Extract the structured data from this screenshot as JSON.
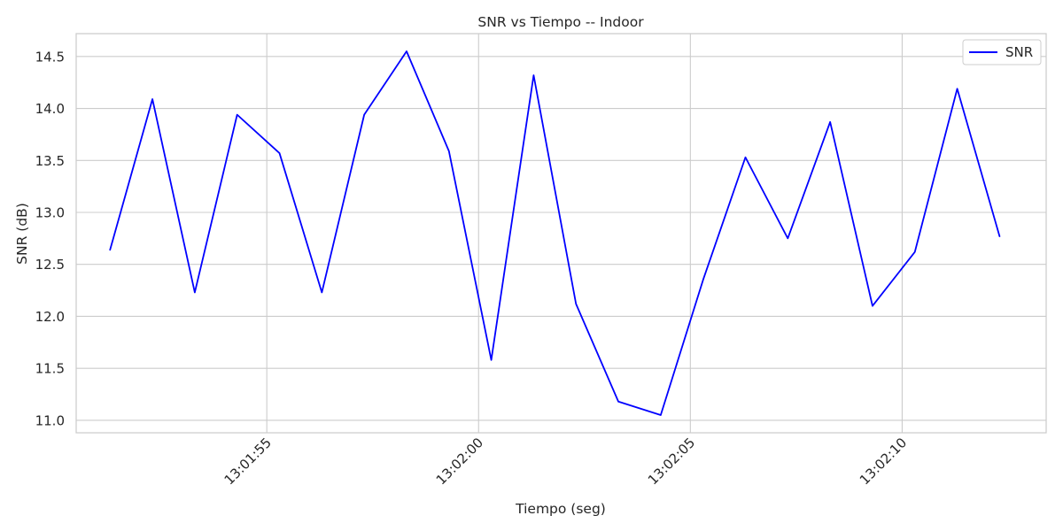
{
  "chart_data": {
    "type": "line",
    "title": "SNR vs Tiempo -- Indoor",
    "xlabel": "Tiempo (seg)",
    "ylabel": "SNR (dB)",
    "x": [
      "13:01:51.3",
      "13:01:52.3",
      "13:01:53.3",
      "13:01:54.3",
      "13:01:55.3",
      "13:01:56.3",
      "13:01:57.3",
      "13:01:58.3",
      "13:01:59.3",
      "13:02:00.3",
      "13:02:01.3",
      "13:02:02.3",
      "13:02:03.3",
      "13:02:04.3",
      "13:02:05.3",
      "13:02:06.3",
      "13:02:07.3",
      "13:02:08.3",
      "13:02:09.3",
      "13:02:10.3",
      "13:02:11.3",
      "13:02:12.3"
    ],
    "series": [
      {
        "name": "SNR",
        "color": "#0000ff",
        "values": [
          12.64,
          14.09,
          12.23,
          13.94,
          13.57,
          12.23,
          13.94,
          14.55,
          13.59,
          11.58,
          14.32,
          12.12,
          11.18,
          11.05,
          12.35,
          13.53,
          12.75,
          13.87,
          12.1,
          12.62,
          14.19,
          12.77
        ]
      }
    ],
    "xticks": [
      "13:01:55",
      "13:02:00",
      "13:02:05",
      "13:02:10"
    ],
    "yticks": [
      "11.0",
      "11.5",
      "12.0",
      "12.5",
      "13.0",
      "13.5",
      "14.0",
      "14.5"
    ],
    "xlim": [
      "13:01:50.5",
      "13:02:13.4"
    ],
    "ylim": [
      10.88,
      14.72
    ],
    "grid": true,
    "legend": {
      "placement": "top-right",
      "entries": [
        "SNR"
      ]
    },
    "colors": {
      "line": "#0000ff",
      "grid": "#cccccc",
      "frame": "#cccccc",
      "text": "#262626"
    }
  }
}
